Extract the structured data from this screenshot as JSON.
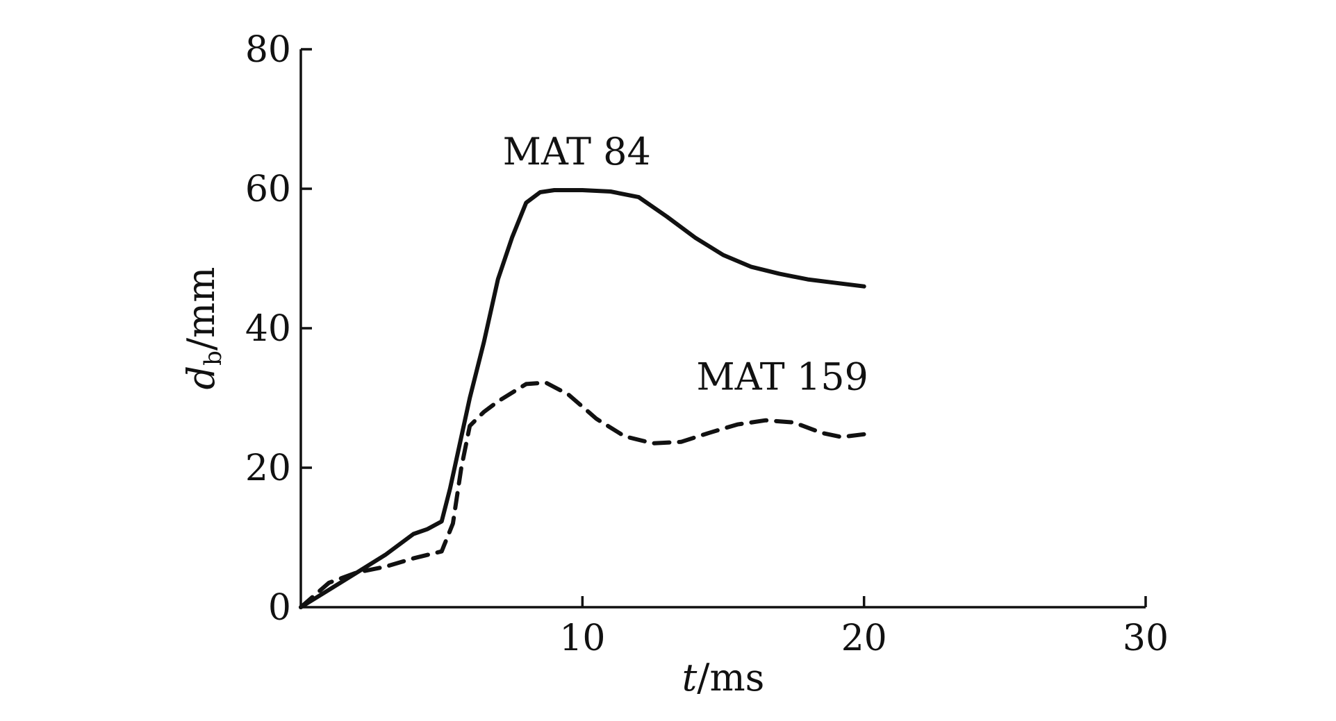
{
  "chart_data": {
    "type": "line",
    "title": "",
    "xlabel": {
      "var": "t",
      "unit": "/ms"
    },
    "ylabel": {
      "var": "d",
      "sub": "b",
      "unit": "/mm"
    },
    "xlim": [
      0,
      30
    ],
    "ylim": [
      0,
      80
    ],
    "xticks": [
      10,
      20,
      30
    ],
    "yticks": [
      0,
      20,
      40,
      60,
      80
    ],
    "grid": false,
    "legend": "none",
    "series": [
      {
        "name": "MAT 84",
        "style": "solid",
        "color": "#111111",
        "points": [
          [
            0,
            0
          ],
          [
            1,
            2.5
          ],
          [
            2,
            5
          ],
          [
            3,
            7.5
          ],
          [
            4,
            10.5
          ],
          [
            4.5,
            11.2
          ],
          [
            5,
            12.3
          ],
          [
            5.3,
            17
          ],
          [
            6,
            30
          ],
          [
            6.5,
            38
          ],
          [
            7,
            47
          ],
          [
            7.5,
            53
          ],
          [
            8,
            58
          ],
          [
            8.5,
            59.5
          ],
          [
            9,
            59.8
          ],
          [
            10,
            59.8
          ],
          [
            11,
            59.6
          ],
          [
            12,
            58.8
          ],
          [
            13,
            56
          ],
          [
            14,
            53
          ],
          [
            15,
            50.5
          ],
          [
            16,
            48.8
          ],
          [
            17,
            47.8
          ],
          [
            18,
            47
          ],
          [
            19,
            46.5
          ],
          [
            20,
            46
          ]
        ]
      },
      {
        "name": "MAT 159",
        "style": "dashed",
        "color": "#111111",
        "points": [
          [
            0,
            0
          ],
          [
            1,
            3.5
          ],
          [
            2,
            5
          ],
          [
            3,
            5.8
          ],
          [
            4,
            7
          ],
          [
            5,
            8
          ],
          [
            5.4,
            12
          ],
          [
            5.7,
            20
          ],
          [
            6,
            26
          ],
          [
            6.5,
            28
          ],
          [
            7,
            29.5
          ],
          [
            8,
            32
          ],
          [
            8.7,
            32.2
          ],
          [
            9.5,
            30.5
          ],
          [
            10.5,
            27
          ],
          [
            11.5,
            24.5
          ],
          [
            12.5,
            23.5
          ],
          [
            13.5,
            23.7
          ],
          [
            14.5,
            25
          ],
          [
            15.5,
            26.2
          ],
          [
            16.5,
            26.8
          ],
          [
            17.5,
            26.5
          ],
          [
            18.5,
            25
          ],
          [
            19.2,
            24.4
          ],
          [
            20,
            24.8
          ]
        ]
      }
    ]
  }
}
